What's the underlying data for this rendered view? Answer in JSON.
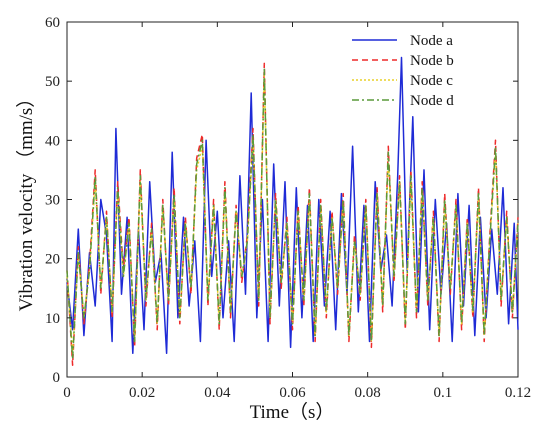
{
  "chart_data": {
    "type": "line",
    "xlabel": "Time（s）",
    "ylabel": "Vibration velocity （mm/s）",
    "xlim": [
      0,
      0.12
    ],
    "ylim": [
      0,
      60
    ],
    "xticks": [
      0,
      0.02,
      0.04,
      0.06,
      0.08,
      0.1,
      0.12
    ],
    "xtick_labels": [
      "0",
      "0.02",
      "0.04",
      "0.06",
      "0.08",
      "0.1",
      "0.12"
    ],
    "yticks": [
      0,
      10,
      20,
      30,
      40,
      50,
      60
    ],
    "ytick_labels": [
      "0",
      "10",
      "20",
      "30",
      "40",
      "50",
      "60"
    ],
    "grid": false,
    "legend_position": "top-right",
    "series": [
      {
        "name": "Node a",
        "color": "#1f2bd6",
        "dash": "solid",
        "x": [
          0,
          0.0015,
          0.003,
          0.0045,
          0.006,
          0.0075,
          0.009,
          0.0105,
          0.012,
          0.013,
          0.0145,
          0.016,
          0.0175,
          0.019,
          0.0205,
          0.022,
          0.0235,
          0.025,
          0.0265,
          0.028,
          0.0295,
          0.031,
          0.0325,
          0.034,
          0.0355,
          0.037,
          0.0385,
          0.04,
          0.0415,
          0.043,
          0.0445,
          0.046,
          0.0475,
          0.049,
          0.0505,
          0.052,
          0.0535,
          0.055,
          0.0565,
          0.058,
          0.0595,
          0.061,
          0.0625,
          0.064,
          0.0655,
          0.067,
          0.0685,
          0.07,
          0.0715,
          0.073,
          0.0745,
          0.076,
          0.0775,
          0.079,
          0.0805,
          0.082,
          0.0835,
          0.085,
          0.0865,
          0.088,
          0.089,
          0.0905,
          0.092,
          0.0935,
          0.095,
          0.0965,
          0.098,
          0.0995,
          0.101,
          0.1025,
          0.104,
          0.1055,
          0.107,
          0.1085,
          0.11,
          0.1115,
          0.113,
          0.1145,
          0.116,
          0.1175,
          0.119,
          0.12
        ],
        "y": [
          16,
          8,
          25,
          7,
          21,
          12,
          30,
          24,
          6,
          42,
          14,
          27,
          4,
          25,
          8,
          33,
          16,
          21,
          4,
          38,
          10,
          27,
          12,
          23,
          6,
          40,
          17,
          28,
          10,
          23,
          6,
          34,
          14,
          48,
          10,
          30,
          6,
          36,
          12,
          33,
          5,
          32,
          10,
          29,
          6,
          30,
          12,
          28,
          8,
          31,
          14,
          39,
          11,
          29,
          6,
          33,
          18,
          24,
          12,
          34,
          54,
          18,
          44,
          11,
          35,
          8,
          30,
          14,
          26,
          6,
          31,
          12,
          29,
          7,
          27,
          10,
          25,
          14,
          32,
          9,
          26,
          8
        ]
      },
      {
        "name": "Node b",
        "color": "#ee2a2a",
        "dash": "6,4",
        "x": [
          0,
          0.0015,
          0.003,
          0.0045,
          0.006,
          0.0075,
          0.009,
          0.0105,
          0.012,
          0.0135,
          0.015,
          0.0165,
          0.018,
          0.0195,
          0.021,
          0.0225,
          0.024,
          0.0255,
          0.027,
          0.0285,
          0.03,
          0.0315,
          0.033,
          0.0345,
          0.036,
          0.0375,
          0.039,
          0.0405,
          0.042,
          0.0435,
          0.045,
          0.0465,
          0.048,
          0.0495,
          0.051,
          0.0525,
          0.054,
          0.0555,
          0.057,
          0.0585,
          0.06,
          0.0615,
          0.063,
          0.0645,
          0.066,
          0.0675,
          0.069,
          0.0705,
          0.072,
          0.0735,
          0.075,
          0.0765,
          0.078,
          0.0795,
          0.081,
          0.0825,
          0.084,
          0.0855,
          0.087,
          0.0885,
          0.09,
          0.0915,
          0.093,
          0.0945,
          0.096,
          0.0975,
          0.099,
          0.1005,
          0.102,
          0.1035,
          0.105,
          0.1065,
          0.108,
          0.1095,
          0.111,
          0.1125,
          0.114,
          0.1155,
          0.117,
          0.1185,
          0.12
        ],
        "y": [
          18,
          2,
          22,
          9,
          19,
          35,
          14,
          28,
          10,
          33,
          18,
          27,
          5,
          35,
          12,
          26,
          8,
          30,
          12,
          32,
          9,
          27,
          14,
          37,
          41,
          12,
          30,
          8,
          33,
          10,
          29,
          16,
          24,
          42,
          12,
          53,
          9,
          31,
          15,
          27,
          8,
          29,
          12,
          32,
          6,
          30,
          10,
          28,
          14,
          31,
          6,
          24,
          13,
          30,
          5,
          32,
          11,
          39,
          16,
          34,
          8,
          35,
          10,
          33,
          12,
          28,
          6,
          31,
          14,
          30,
          8,
          27,
          10,
          32,
          6,
          24,
          40,
          12,
          28,
          10,
          27
        ]
      },
      {
        "name": "Node c",
        "color": "#e8d02a",
        "dash": "2,2",
        "x": [
          0,
          0.0015,
          0.003,
          0.0045,
          0.006,
          0.0075,
          0.009,
          0.0105,
          0.012,
          0.0135,
          0.015,
          0.0165,
          0.018,
          0.0195,
          0.021,
          0.0225,
          0.024,
          0.0255,
          0.027,
          0.0285,
          0.03,
          0.0315,
          0.033,
          0.0345,
          0.036,
          0.0375,
          0.039,
          0.0405,
          0.042,
          0.0435,
          0.045,
          0.0465,
          0.048,
          0.0495,
          0.051,
          0.0525,
          0.054,
          0.0555,
          0.057,
          0.0585,
          0.06,
          0.0615,
          0.063,
          0.0645,
          0.066,
          0.0675,
          0.069,
          0.0705,
          0.072,
          0.0735,
          0.075,
          0.0765,
          0.078,
          0.0795,
          0.081,
          0.0825,
          0.084,
          0.0855,
          0.087,
          0.0885,
          0.09,
          0.0915,
          0.093,
          0.0945,
          0.096,
          0.0975,
          0.099,
          0.1005,
          0.102,
          0.1035,
          0.105,
          0.1065,
          0.108,
          0.1095,
          0.111,
          0.1125,
          0.114,
          0.1155,
          0.117,
          0.1185,
          0.12
        ],
        "y": [
          17,
          4,
          21,
          10,
          18,
          33,
          15,
          27,
          11,
          31,
          17,
          26,
          6,
          33,
          13,
          25,
          9,
          29,
          13,
          30,
          10,
          26,
          15,
          35,
          39,
          13,
          29,
          9,
          31,
          11,
          28,
          17,
          23,
          40,
          13,
          51,
          10,
          30,
          16,
          26,
          9,
          28,
          13,
          30,
          7,
          29,
          11,
          27,
          15,
          29,
          7,
          23,
          14,
          29,
          6,
          31,
          12,
          37,
          17,
          33,
          9,
          33,
          11,
          31,
          13,
          27,
          7,
          29,
          15,
          29,
          9,
          26,
          11,
          30,
          7,
          23,
          38,
          13,
          27,
          11,
          26
        ]
      },
      {
        "name": "Node d",
        "color": "#5a9a3a",
        "dash": "7,3,2,3",
        "x": [
          0,
          0.0015,
          0.003,
          0.0045,
          0.006,
          0.0075,
          0.009,
          0.0105,
          0.012,
          0.0135,
          0.015,
          0.0165,
          0.018,
          0.0195,
          0.021,
          0.0225,
          0.024,
          0.0255,
          0.027,
          0.0285,
          0.03,
          0.0315,
          0.033,
          0.0345,
          0.036,
          0.0375,
          0.039,
          0.0405,
          0.042,
          0.0435,
          0.045,
          0.0465,
          0.048,
          0.0495,
          0.051,
          0.0525,
          0.054,
          0.0555,
          0.057,
          0.0585,
          0.06,
          0.0615,
          0.063,
          0.0645,
          0.066,
          0.0675,
          0.069,
          0.0705,
          0.072,
          0.0735,
          0.075,
          0.0765,
          0.078,
          0.0795,
          0.081,
          0.0825,
          0.084,
          0.0855,
          0.087,
          0.0885,
          0.09,
          0.0915,
          0.093,
          0.0945,
          0.096,
          0.0975,
          0.099,
          0.1005,
          0.102,
          0.1035,
          0.105,
          0.1065,
          0.108,
          0.1095,
          0.111,
          0.1125,
          0.114,
          0.1155,
          0.117,
          0.1185,
          0.12
        ],
        "y": [
          18,
          3,
          21,
          10,
          18,
          34,
          15,
          27,
          11,
          32,
          17,
          26,
          6,
          34,
          13,
          25,
          9,
          29,
          13,
          31,
          10,
          26,
          15,
          36,
          40,
          13,
          29,
          9,
          32,
          11,
          28,
          17,
          23,
          41,
          13,
          52,
          10,
          30,
          16,
          26,
          9,
          28,
          13,
          31,
          7,
          29,
          11,
          27,
          15,
          30,
          7,
          23,
          14,
          29,
          6,
          31,
          12,
          38,
          17,
          33,
          9,
          34,
          11,
          32,
          13,
          27,
          7,
          30,
          15,
          29,
          9,
          26,
          11,
          31,
          7,
          23,
          39,
          13,
          27,
          11,
          26
        ]
      }
    ]
  }
}
